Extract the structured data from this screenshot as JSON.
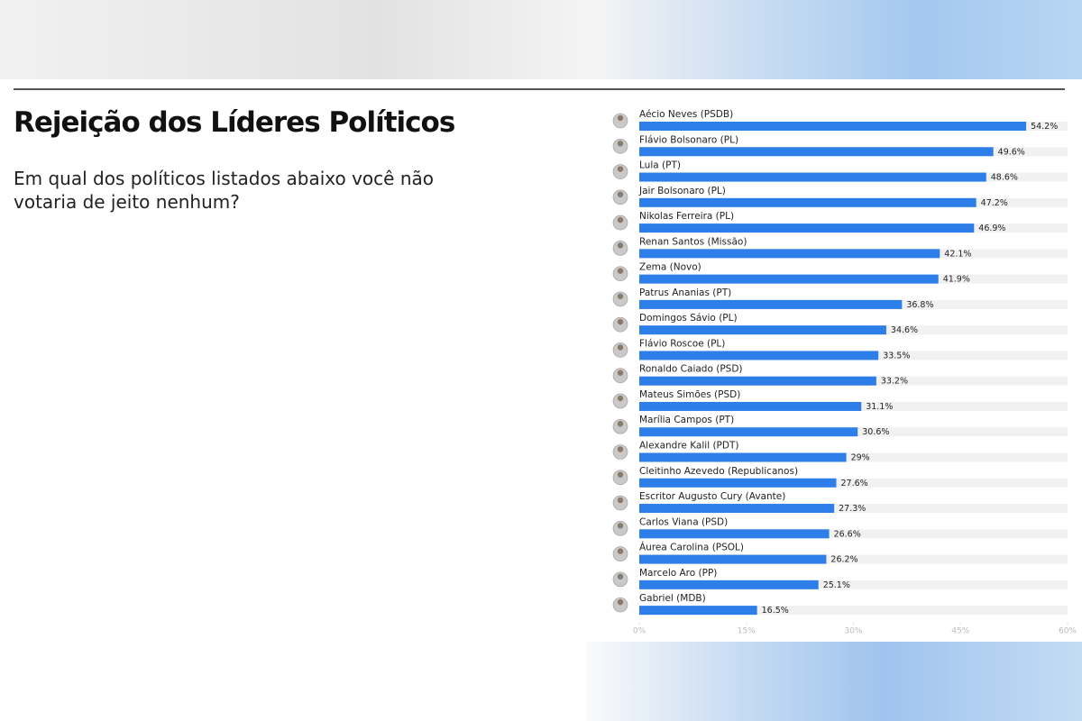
{
  "chart_data": {
    "type": "bar",
    "orientation": "horizontal",
    "title": "Rejeição dos Líderes Políticos",
    "subtitle": "Em qual dos políticos listados abaixo você não votaria de jeito nenhum?",
    "categories": [
      "Aécio Neves (PSDB)",
      "Flávio Bolsonaro (PL)",
      "Lula (PT)",
      "Jair Bolsonaro (PL)",
      "Nikolas Ferreira (PL)",
      "Renan Santos (Missão)",
      "Zema (Novo)",
      "Patrus Ananias (PT)",
      "Domingos Sávio (PL)",
      "Flávio Roscoe (PL)",
      "Ronaldo Caiado (PSD)",
      "Mateus Simões (PSD)",
      "Marília Campos (PT)",
      "Alexandre Kalil (PDT)",
      "Cleitinho Azevedo (Republicanos)",
      "Escritor Augusto Cury (Avante)",
      "Carlos Viana (PSD)",
      "Áurea Carolina (PSOL)",
      "Marcelo Aro (PP)",
      "Gabriel (MDB)"
    ],
    "values": [
      54.2,
      49.6,
      48.6,
      47.2,
      46.9,
      42.1,
      41.9,
      36.8,
      34.6,
      33.5,
      33.2,
      31.1,
      30.6,
      29,
      27.6,
      27.3,
      26.6,
      26.2,
      25.1,
      16.5
    ],
    "value_labels": [
      "54.2%",
      "49.6%",
      "48.6%",
      "47.2%",
      "46.9%",
      "42.1%",
      "41.9%",
      "36.8%",
      "34.6%",
      "33.5%",
      "33.2%",
      "31.1%",
      "30.6%",
      "29%",
      "27.6%",
      "27.3%",
      "26.6%",
      "26.2%",
      "25.1%",
      "16.5%"
    ],
    "color": "#2d7ee8",
    "xlim": [
      0,
      60
    ],
    "xticks": [
      {
        "value": 0,
        "label": "0%"
      },
      {
        "value": 15,
        "label": "15%"
      },
      {
        "value": 30,
        "label": "30%"
      },
      {
        "value": 45,
        "label": "45%"
      },
      {
        "value": 60,
        "label": "60%"
      }
    ]
  }
}
